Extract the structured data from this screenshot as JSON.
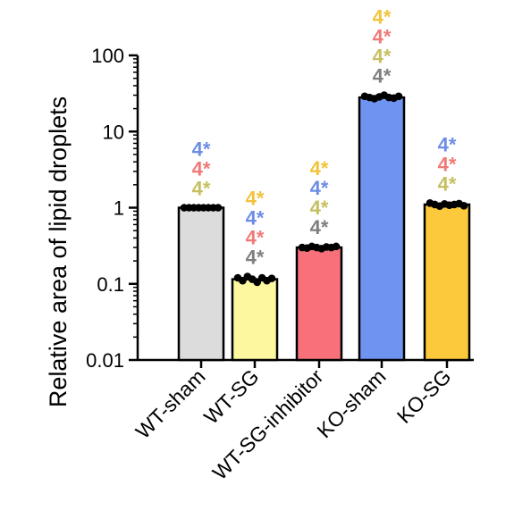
{
  "chart_data": {
    "type": "bar",
    "yscale": "log",
    "ylim": [
      0.01,
      100
    ],
    "ylabel": "Relative area of lipid droplets",
    "yticks": [
      "0.01",
      "0.1",
      "1",
      "10",
      "100"
    ],
    "categories": [
      "WT-sham",
      "WT-SG",
      "WT-SG-inhibitor",
      "KO-sham",
      "KO-SG"
    ],
    "values": [
      1.0,
      0.115,
      0.3,
      28,
      1.1
    ],
    "points": [
      [
        1.0,
        1.0,
        1.0,
        1.0,
        1.0,
        1.0,
        1.0,
        1.0
      ],
      [
        0.12,
        0.11,
        0.125,
        0.115,
        0.105,
        0.12,
        0.11,
        0.118
      ],
      [
        0.3,
        0.295,
        0.31,
        0.3,
        0.29,
        0.305,
        0.3,
        0.31
      ],
      [
        29,
        28,
        27,
        28.5,
        30,
        28,
        27.5,
        29
      ],
      [
        1.15,
        1.1,
        1.05,
        1.12,
        1.08,
        1.1,
        1.13,
        1.06
      ]
    ],
    "bar_colors": [
      "#dcdcdc",
      "#fdf7a0",
      "#f7707a",
      "#6f93f0",
      "#fcc83c"
    ],
    "significance": [
      [
        {
          "text": "4*",
          "color": "#6d8de6"
        },
        {
          "text": "4*",
          "color": "#f07a78"
        },
        {
          "text": "4*",
          "color": "#c5c060"
        }
      ],
      [
        {
          "text": "4*",
          "color": "#f2c33c"
        },
        {
          "text": "4*",
          "color": "#6d8de6"
        },
        {
          "text": "4*",
          "color": "#f07a78"
        },
        {
          "text": "4*",
          "color": "#7f7f7f"
        }
      ],
      [
        {
          "text": "4*",
          "color": "#f2c33c"
        },
        {
          "text": "4*",
          "color": "#6d8de6"
        },
        {
          "text": "4*",
          "color": "#c5c060"
        },
        {
          "text": "4*",
          "color": "#7f7f7f"
        }
      ],
      [
        {
          "text": "4*",
          "color": "#f2c33c"
        },
        {
          "text": "4*",
          "color": "#f07a78"
        },
        {
          "text": "4*",
          "color": "#c5c060"
        },
        {
          "text": "4*",
          "color": "#7f7f7f"
        }
      ],
      [
        {
          "text": "4*",
          "color": "#6d8de6"
        },
        {
          "text": "4*",
          "color": "#f07a78"
        },
        {
          "text": "4*",
          "color": "#c5c060"
        }
      ]
    ]
  }
}
